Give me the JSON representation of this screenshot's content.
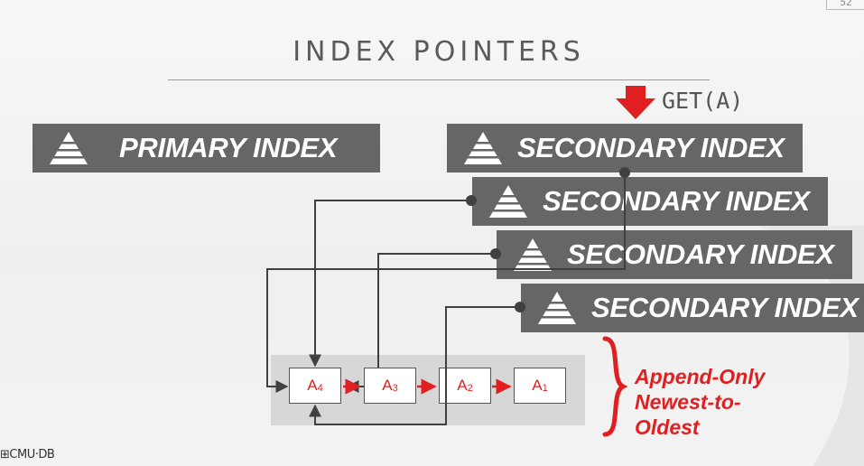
{
  "slide_number": "52",
  "title": "INDEX POINTERS",
  "get_label": "GET(A)",
  "primary_index": {
    "label": "PRIMARY INDEX"
  },
  "secondary_indexes": [
    {
      "label": "SECONDARY INDEX"
    },
    {
      "label": "SECONDARY INDEX"
    },
    {
      "label": "SECONDARY INDEX"
    },
    {
      "label": "SECONDARY INDEX"
    }
  ],
  "versions": [
    {
      "base": "A",
      "sub": "4"
    },
    {
      "base": "A",
      "sub": "3"
    },
    {
      "base": "A",
      "sub": "2"
    },
    {
      "base": "A",
      "sub": "1"
    }
  ],
  "append_note": [
    "Append-Only",
    "Newest-to-",
    "Oldest"
  ],
  "logo_text": "CMU·DB",
  "colors": {
    "box": "#666666",
    "accent_red": "#e02020",
    "wire": "#404040"
  }
}
